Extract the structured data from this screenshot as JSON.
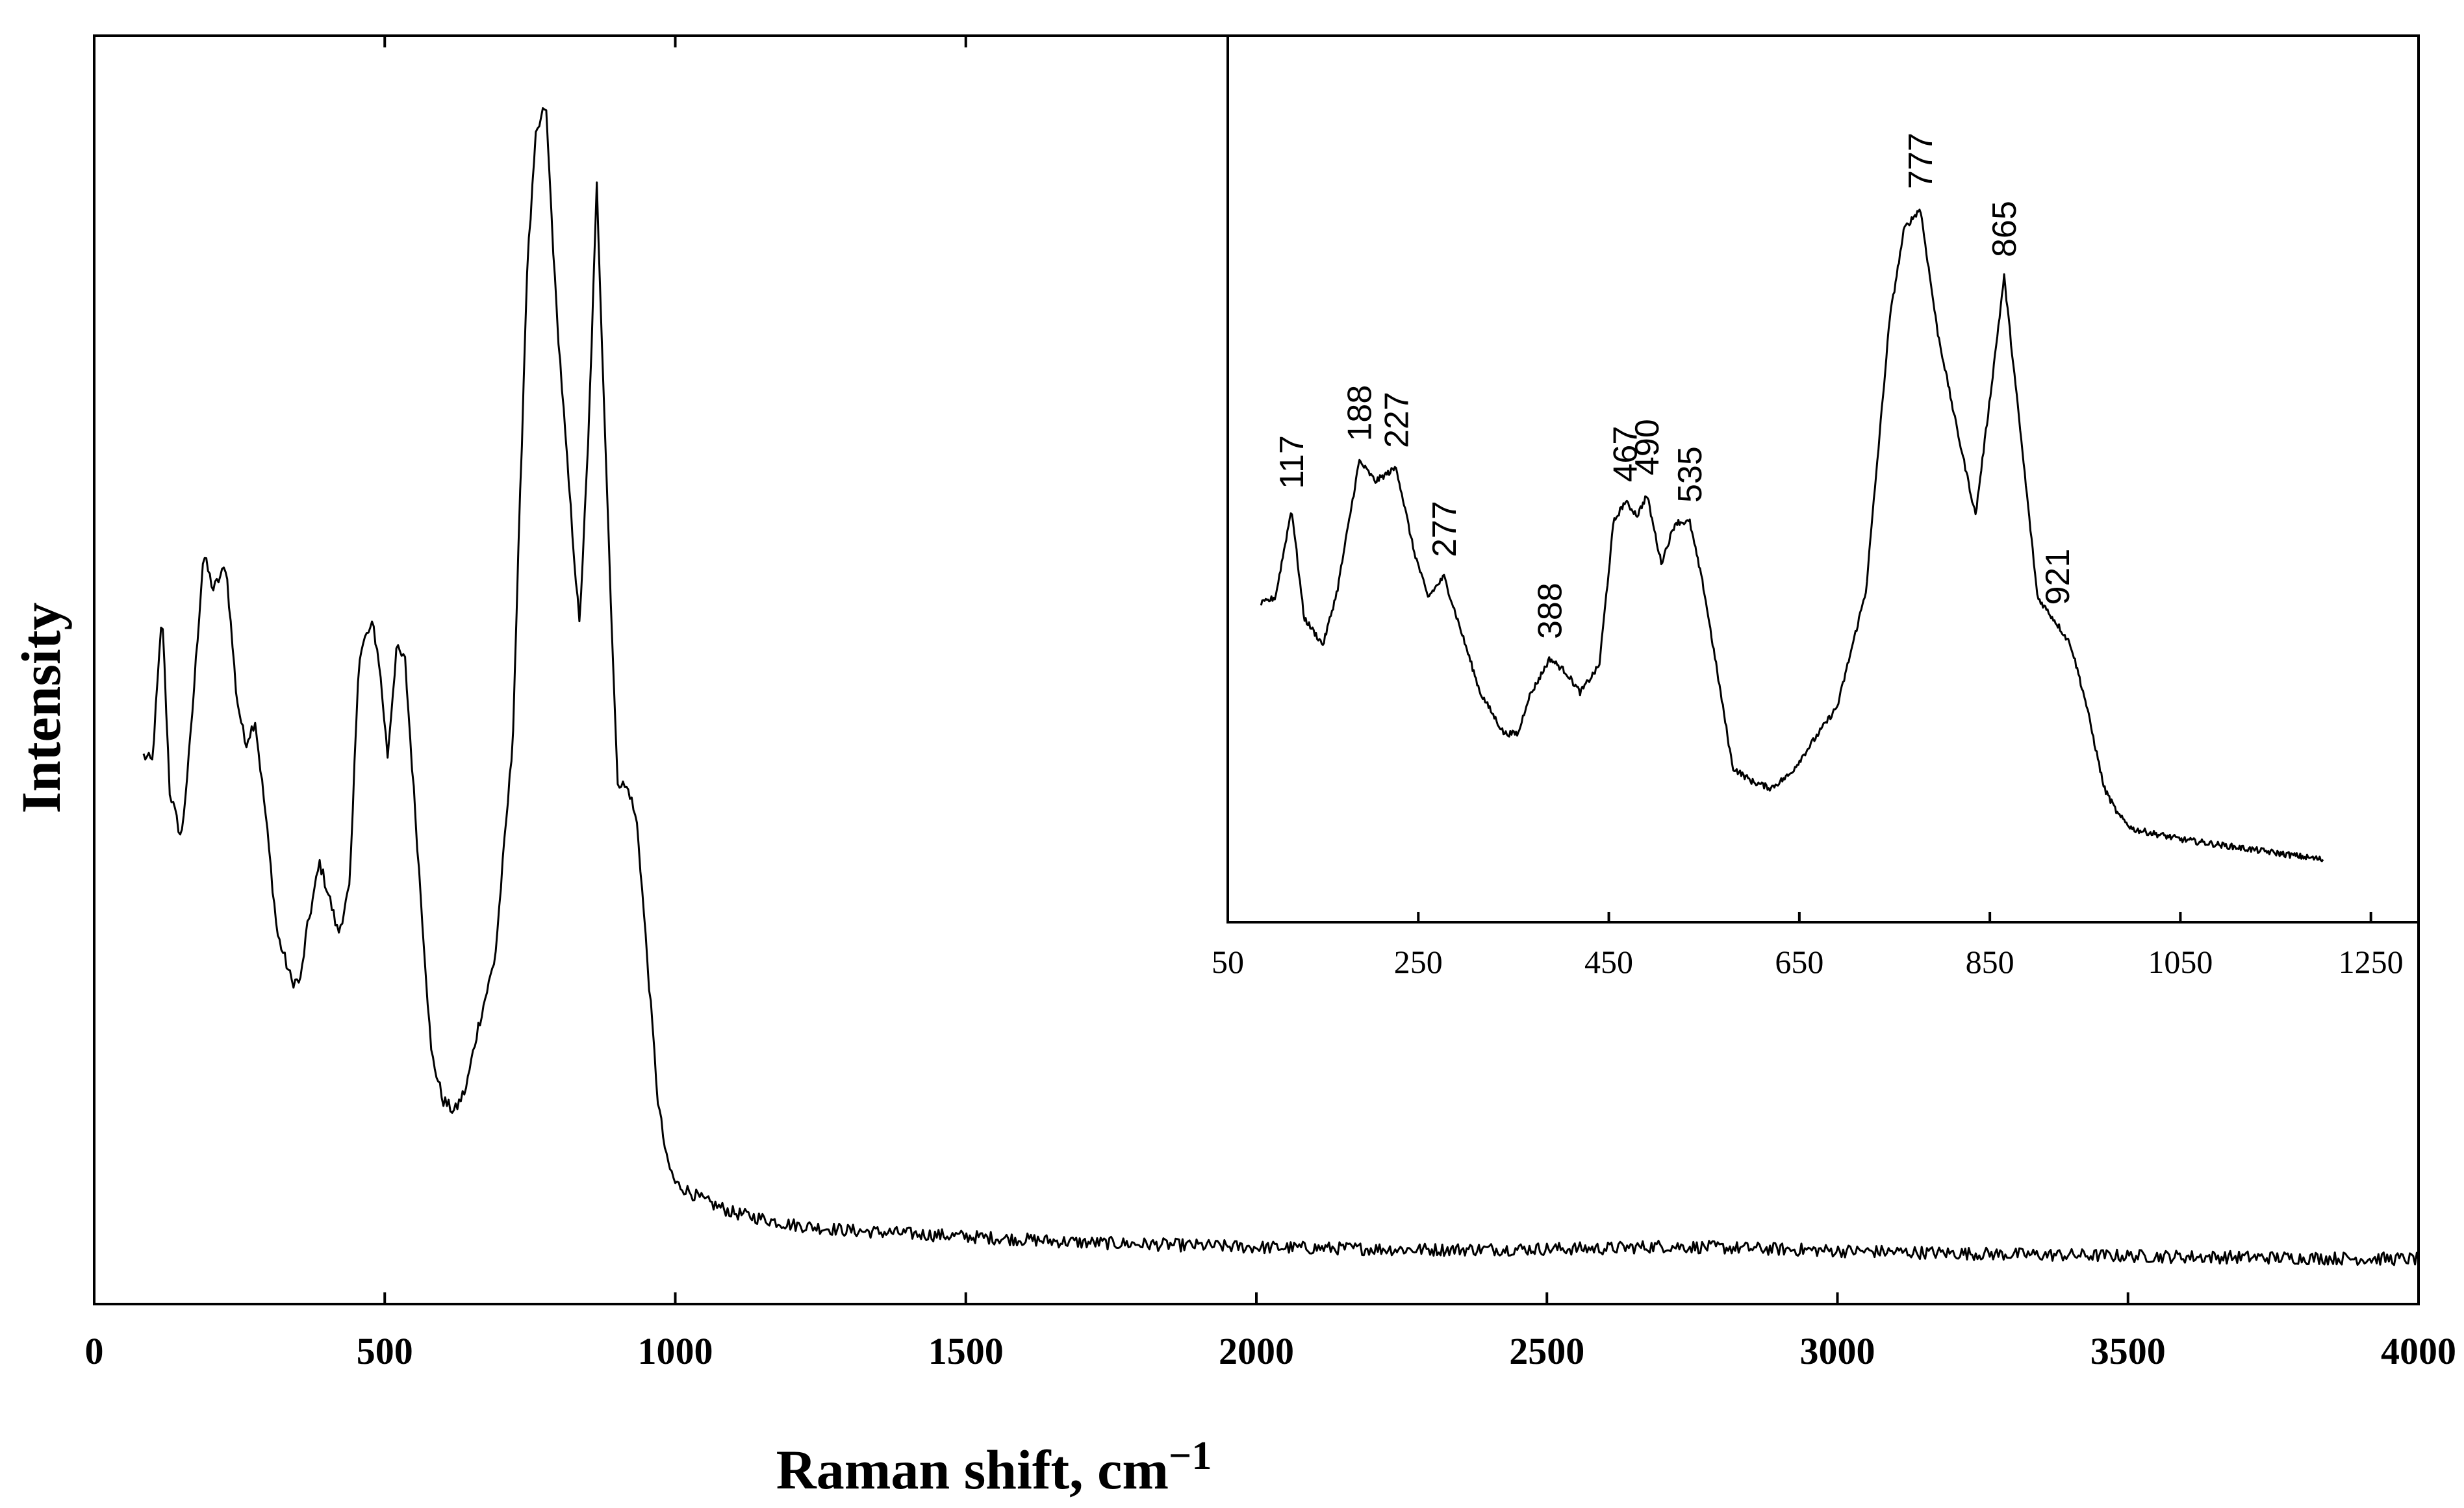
{
  "chart_data": [
    {
      "type": "line",
      "xlabel": "Raman shift, cm",
      "xlabel_sup": "−1",
      "ylabel": "Intensity",
      "xlim": [
        0,
        4000
      ],
      "ylim": [
        0,
        100
      ],
      "x_ticks": [
        "0",
        "500",
        "1000",
        "1500",
        "2000",
        "2500",
        "3000",
        "3500",
        "4000"
      ],
      "x_tick_values": [
        0,
        500,
        1000,
        1500,
        2000,
        2500,
        3000,
        3500,
        4000
      ],
      "y_ticks_shown": false,
      "grid": false,
      "series": [
        {
          "x": [
            85,
            100,
            117,
            130,
            150,
            165,
            188,
            205,
            227,
            245,
            260,
            277,
            295,
            315,
            340,
            355,
            365,
            388,
            405,
            420,
            440,
            455,
            467,
            480,
            490,
            505,
            520,
            535,
            550,
            565,
            580,
            600,
            620,
            640,
            660,
            690,
            720,
            745,
            760,
            777,
            795,
            815,
            835,
            850,
            865,
            880,
            900,
            921,
            935,
            950,
            970,
            985,
            1000,
            1050,
            1100,
            1200,
            1300,
            1500,
            1700,
            2000,
            2300,
            2600,
            2700,
            3000,
            3300,
            3600,
            4000
          ],
          "y": [
            44,
            43.5,
            56,
            41,
            37,
            45,
            61,
            58,
            60,
            49,
            45,
            47,
            39,
            29,
            25,
            25,
            29,
            35,
            32,
            29,
            33,
            52,
            54,
            55,
            52,
            44,
            53,
            52,
            41,
            30,
            19,
            15,
            14,
            16,
            21,
            27,
            45,
            85,
            96,
            99,
            82,
            68,
            55,
            70,
            92,
            70,
            42,
            41,
            38,
            28,
            15,
            10,
            8,
            6.5,
            5.5,
            4.5,
            4,
            3.5,
            3,
            2.6,
            2.4,
            2.5,
            2.7,
            2.3,
            2,
            1.8,
            1.6
          ]
        }
      ],
      "inset": {
        "type": "line",
        "xlim": [
          50,
          1300
        ],
        "ylim": [
          0,
          100
        ],
        "x_ticks": [
          "50",
          "250",
          "450",
          "650",
          "850",
          "1050",
          "1250"
        ],
        "x_tick_values": [
          50,
          250,
          450,
          650,
          850,
          1050,
          1250
        ],
        "peak_labels": [
          "117",
          "188",
          "227",
          "277",
          "388",
          "467",
          "490",
          "535",
          "777",
          "865",
          "921"
        ],
        "peak_positions": [
          117,
          188,
          227,
          277,
          388,
          467,
          490,
          535,
          777,
          865,
          921
        ],
        "peak_heights": [
          54,
          61,
          60,
          44,
          32,
          55,
          56,
          52,
          98,
          88,
          37
        ],
        "series": [
          {
            "x": [
              85,
              100,
              117,
              130,
              150,
              165,
              188,
              205,
              227,
              245,
              260,
              277,
              295,
              315,
              340,
              355,
              365,
              388,
              405,
              420,
              440,
              455,
              467,
              480,
              490,
              505,
              520,
              535,
              550,
              565,
              580,
              600,
              620,
              640,
              660,
              690,
              720,
              745,
              760,
              777,
              795,
              815,
              835,
              850,
              865,
              880,
              900,
              921,
              935,
              950,
              970,
              985,
              1000,
              1050,
              1100,
              1150,
              1200
            ],
            "y": [
              40,
              41,
              54,
              38,
              34,
              42,
              61,
              58,
              60,
              48,
              41,
              44,
              36,
              27,
              21,
              21,
              26,
              32,
              30,
              27,
              31,
              52,
              55,
              53,
              56,
              46,
              52,
              52,
              42,
              29,
              16,
              14,
              13,
              15,
              19,
              25,
              42,
              82,
              95,
              98,
              80,
              66,
              53,
              70,
              88,
              68,
              41,
              37,
              34,
              26,
              13,
              9,
              7,
              5.5,
              4.5,
              3.5,
              2.5
            ]
          }
        ]
      }
    }
  ]
}
